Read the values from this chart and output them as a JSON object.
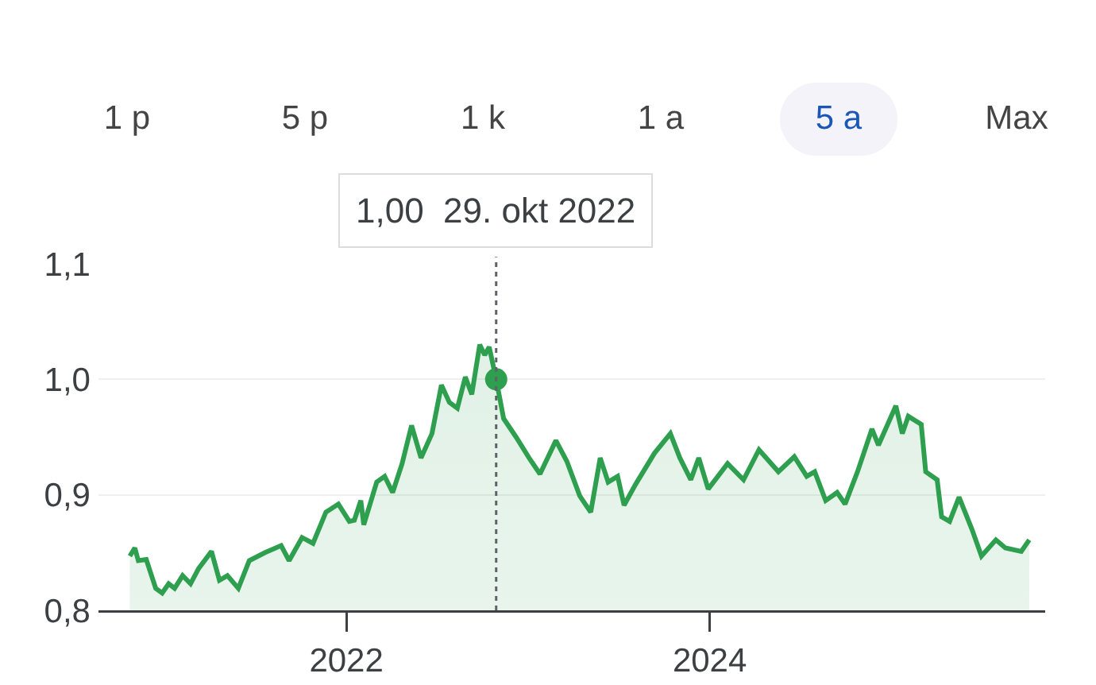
{
  "chart_data": {
    "type": "area",
    "x": [
      "2020-10-23",
      "2020-11-02",
      "2020-11-09",
      "2020-11-25",
      "2020-12-14",
      "2020-12-27",
      "2021-01-09",
      "2021-01-21",
      "2021-02-06",
      "2021-02-22",
      "2021-03-10",
      "2021-04-05",
      "2021-04-21",
      "2021-05-07",
      "2021-05-29",
      "2021-06-20",
      "2021-07-22",
      "2021-08-23",
      "2021-09-08",
      "2021-10-04",
      "2021-10-26",
      "2021-11-21",
      "2021-12-16",
      "2022-01-07",
      "2022-01-17",
      "2022-01-30",
      "2022-02-05",
      "2022-03-03",
      "2022-03-19",
      "2022-04-04",
      "2022-04-23",
      "2022-05-12",
      "2022-05-31",
      "2022-06-22",
      "2022-07-11",
      "2022-07-27",
      "2022-08-12",
      "2022-08-28",
      "2022-09-10",
      "2022-09-26",
      "2022-10-06",
      "2022-10-15",
      "2022-10-29",
      "2022-11-13",
      "2022-12-08",
      "2023-01-03",
      "2023-01-25",
      "2023-02-26",
      "2023-03-20",
      "2023-04-15",
      "2023-05-07",
      "2023-05-26",
      "2023-06-11",
      "2023-06-30",
      "2023-07-13",
      "2023-08-05",
      "2023-09-12",
      "2023-10-14",
      "2023-11-02",
      "2023-11-24",
      "2023-12-10",
      "2023-12-29",
      "2024-02-06",
      "2024-03-09",
      "2024-04-09",
      "2024-05-18",
      "2024-06-19",
      "2024-07-14",
      "2024-07-30",
      "2024-08-21",
      "2024-09-13",
      "2024-09-29",
      "2024-10-24",
      "2024-11-22",
      "2024-12-05",
      "2025-01-09",
      "2025-01-22",
      "2025-02-03",
      "2025-03-01",
      "2025-03-10",
      "2025-04-02",
      "2025-04-11",
      "2025-04-27",
      "2025-05-16",
      "2025-06-11",
      "2025-06-30",
      "2025-07-29",
      "2025-08-17",
      "2025-09-18",
      "2025-10-04"
    ],
    "series": [
      {
        "color": "#2e9e4f",
        "values": [
          0.847,
          0.854,
          0.843,
          0.844,
          0.819,
          0.815,
          0.823,
          0.819,
          0.83,
          0.823,
          0.836,
          0.851,
          0.826,
          0.83,
          0.819,
          0.843,
          0.85,
          0.856,
          0.843,
          0.863,
          0.858,
          0.885,
          0.892,
          0.877,
          0.878,
          0.895,
          0.874,
          0.911,
          0.916,
          0.902,
          0.927,
          0.96,
          0.932,
          0.953,
          0.995,
          0.98,
          0.975,
          1.002,
          0.987,
          1.03,
          1.021,
          1.028,
          1.0,
          0.966,
          0.95,
          0.932,
          0.918,
          0.947,
          0.929,
          0.899,
          0.885,
          0.932,
          0.911,
          0.916,
          0.891,
          0.909,
          0.936,
          0.953,
          0.932,
          0.913,
          0.932,
          0.905,
          0.927,
          0.913,
          0.939,
          0.92,
          0.933,
          0.916,
          0.92,
          0.895,
          0.902,
          0.892,
          0.92,
          0.957,
          0.943,
          0.977,
          0.953,
          0.968,
          0.961,
          0.92,
          0.913,
          0.881,
          0.877,
          0.898,
          0.87,
          0.847,
          0.861,
          0.854,
          0.851,
          0.861
        ]
      },
      {
        "type": "scatter",
        "color": "#2e9e4f",
        "marker": "circle",
        "x": [
          "2022-10-29"
        ],
        "values": [
          1.0
        ]
      }
    ],
    "xlim": [
      "2020-08-21",
      "2025-11-05"
    ],
    "xticks": [
      {
        "value": "2022-01-01",
        "label": "2022"
      },
      {
        "value": "2024-01-01",
        "label": "2024"
      }
    ],
    "ylim": [
      0.8,
      1.1
    ],
    "yticks": [
      {
        "value": 0.8,
        "label": "0,8"
      },
      {
        "value": 0.9,
        "label": "0,9"
      },
      {
        "value": 1.0,
        "label": "1,0"
      },
      {
        "value": 1.1,
        "label": "1,1"
      }
    ],
    "grid": "y",
    "ref_lines": [
      {
        "axis": "x",
        "value": "2022-10-29",
        "label": "1,00  29. okt 2022",
        "color": "#5f6368",
        "line_style": "dotted"
      }
    ],
    "annotations": [
      "1 p",
      "5 p",
      "1 k",
      "1 a",
      "5 a",
      "Max"
    ]
  }
}
